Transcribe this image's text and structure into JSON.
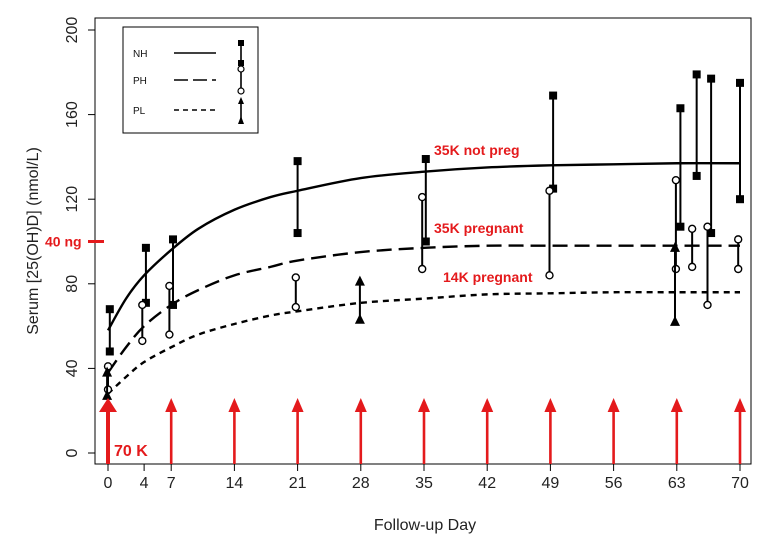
{
  "chart_data": {
    "type": "line",
    "title": "",
    "xlabel": "Follow-up Day",
    "ylabel": "Serum [25(OH)D] (nmol/L)",
    "xlim": [
      -1,
      71
    ],
    "ylim": [
      0,
      205
    ],
    "xticks": [
      0,
      4,
      7,
      14,
      21,
      28,
      35,
      42,
      49,
      56,
      63,
      70
    ],
    "xtick_labels": [
      "0",
      "4",
      "7",
      "14",
      "21",
      "28",
      "35",
      "42",
      "49",
      "56",
      "63",
      "70"
    ],
    "yticks": [
      0,
      40,
      80,
      120,
      160,
      200
    ],
    "ytick_labels": [
      "0",
      "40",
      "80",
      "120",
      "160",
      "200"
    ],
    "legend": {
      "position": "top-left",
      "entries": [
        {
          "label": "NH",
          "line": "solid",
          "marker": "filled-square"
        },
        {
          "label": "PH",
          "line": "long-dash",
          "marker": "open-circle"
        },
        {
          "label": "PL",
          "line": "short-dash",
          "marker": "triangle"
        }
      ]
    },
    "curves": [
      {
        "name": "NH",
        "line": "solid",
        "label": "35K not preg",
        "label_at": [
          35,
          140
        ],
        "points": [
          [
            0,
            58
          ],
          [
            2,
            73
          ],
          [
            4,
            84
          ],
          [
            7,
            96
          ],
          [
            10,
            106
          ],
          [
            14,
            115
          ],
          [
            18,
            121
          ],
          [
            21,
            124
          ],
          [
            28,
            130
          ],
          [
            35,
            133
          ],
          [
            42,
            135
          ],
          [
            49,
            136
          ],
          [
            56,
            136.5
          ],
          [
            63,
            137
          ],
          [
            70,
            137
          ]
        ]
      },
      {
        "name": "PH",
        "line": "long-dash",
        "label": "35K pregnant",
        "label_at": [
          35,
          103
        ],
        "points": [
          [
            0,
            38
          ],
          [
            2,
            50
          ],
          [
            4,
            60
          ],
          [
            7,
            70
          ],
          [
            10,
            77
          ],
          [
            14,
            84
          ],
          [
            18,
            88
          ],
          [
            21,
            91
          ],
          [
            28,
            95
          ],
          [
            35,
            97
          ],
          [
            42,
            98
          ],
          [
            49,
            98
          ],
          [
            56,
            98
          ],
          [
            63,
            98
          ],
          [
            70,
            98
          ]
        ]
      },
      {
        "name": "PL",
        "line": "short-dash",
        "label": "14K pregnant",
        "label_at": [
          36,
          80
        ],
        "points": [
          [
            0,
            28
          ],
          [
            2,
            36
          ],
          [
            4,
            43
          ],
          [
            7,
            50
          ],
          [
            10,
            56
          ],
          [
            14,
            61
          ],
          [
            18,
            65
          ],
          [
            21,
            67
          ],
          [
            28,
            71
          ],
          [
            35,
            73
          ],
          [
            42,
            75
          ],
          [
            49,
            75.5
          ],
          [
            56,
            76
          ],
          [
            63,
            76
          ],
          [
            70,
            76
          ]
        ]
      }
    ],
    "series": [
      {
        "name": "NH",
        "marker": "filled-square",
        "ranges": [
          [
            0.2,
            48,
            68
          ],
          [
            4.2,
            71,
            97
          ],
          [
            7.2,
            70,
            101
          ],
          [
            21,
            104,
            138
          ],
          [
            35.2,
            100,
            139
          ],
          [
            49.3,
            125,
            169
          ],
          [
            63.4,
            107,
            163
          ],
          [
            65.2,
            131,
            179
          ],
          [
            66.8,
            104,
            177
          ],
          [
            70,
            120,
            175
          ]
        ]
      },
      {
        "name": "PH",
        "marker": "open-circle",
        "ranges": [
          [
            0,
            30,
            41
          ],
          [
            3.8,
            53,
            70
          ],
          [
            6.8,
            56,
            79
          ],
          [
            20.8,
            69,
            83
          ],
          [
            34.8,
            87,
            121
          ],
          [
            48.9,
            84,
            124
          ],
          [
            62.9,
            87,
            129
          ],
          [
            64.7,
            88,
            106
          ],
          [
            66.4,
            70,
            107
          ],
          [
            69.8,
            87,
            101
          ]
        ]
      },
      {
        "name": "PL",
        "marker": "triangle",
        "ranges": [
          [
            -0.1,
            27,
            38
          ],
          [
            27.9,
            63,
            81
          ],
          [
            62.8,
            62,
            97
          ]
        ]
      }
    ],
    "annotations": [
      {
        "text": "40 ng",
        "at_y": 100,
        "color": "#e41a1c"
      },
      {
        "text": "70 K",
        "at_x": 0,
        "color": "#e41a1c"
      }
    ],
    "dose_arrows_days": [
      0,
      7,
      14,
      21,
      28,
      35,
      42,
      49,
      56,
      63,
      70
    ],
    "dose_arrow_color": "#e41a1c"
  }
}
